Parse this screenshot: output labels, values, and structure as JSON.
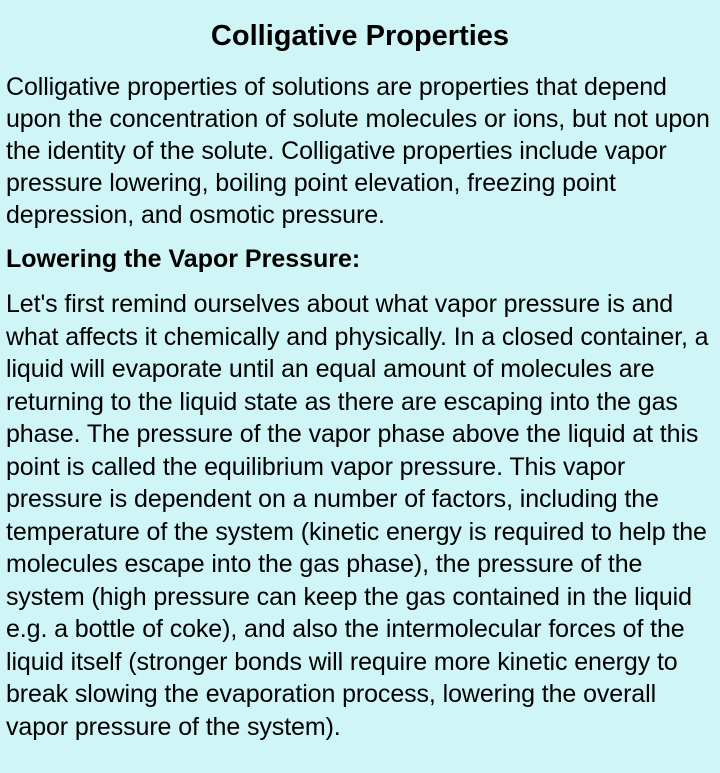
{
  "background_color": "#cff5f6",
  "text_color": "#000000",
  "font_family": "Arial, Helvetica, sans-serif",
  "title": {
    "text": "Colligative Properties",
    "fontsize": 29,
    "font_weight": "bold",
    "align": "center"
  },
  "intro_paragraph": {
    "text": "Colligative properties of solutions are properties that depend upon the concentration of solute molecules or ions, but not upon the identity of the solute. Colligative properties include vapor pressure lowering, boiling point elevation, freezing point depression, and osmotic pressure.",
    "fontsize": 25,
    "line_height": 1.28
  },
  "subheading": {
    "text": "Lowering the Vapor Pressure:",
    "fontsize": 25,
    "font_weight": "bold"
  },
  "body_paragraph": {
    "text": "Let's first remind ourselves about what vapor pressure is and what affects it chemically and physically. In a closed container, a liquid will evaporate until an equal amount of molecules are returning to the liquid state as there are escaping into the gas phase. The pressure of the vapor phase above the liquid at this point is called the equilibrium vapor pressure. This vapor pressure is dependent on a number of factors, including the temperature of the system (kinetic energy is required to help the molecules escape into the gas phase), the pressure of the system (high pressure can keep the gas contained in the liquid e.g. a bottle of coke), and also the intermolecular forces of the liquid itself (stronger bonds will require more kinetic energy to break slowing the evaporation process, lowering the overall vapor pressure of the system).",
    "fontsize": 25,
    "line_height": 1.3
  }
}
